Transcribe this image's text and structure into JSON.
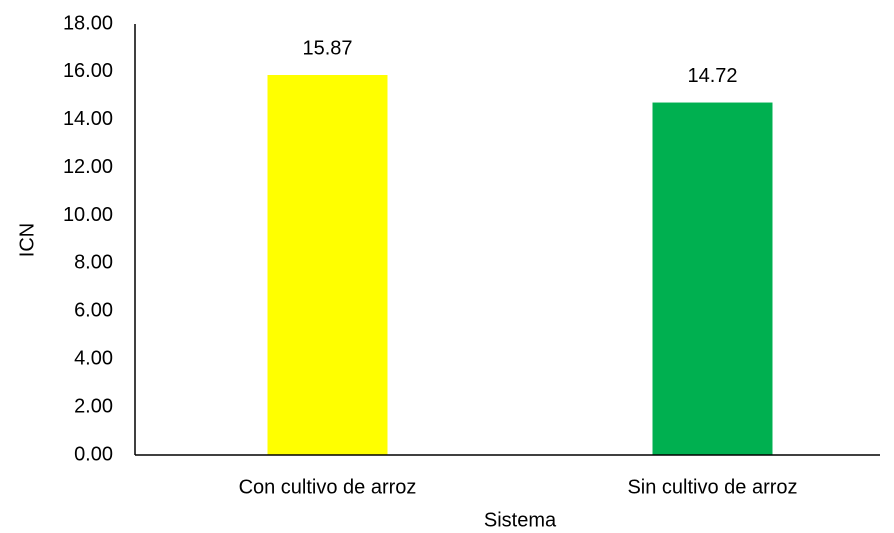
{
  "chart_data": {
    "type": "bar",
    "categories": [
      "Con cultivo de arroz",
      "Sin cultivo de arroz"
    ],
    "values": [
      15.87,
      14.72
    ],
    "colors": [
      "#ffff00",
      "#00b050"
    ],
    "xlabel": "Sistema",
    "ylabel": "ICN",
    "ylim": [
      0,
      18
    ],
    "yticks": [
      {
        "value": 0,
        "label": "0.00"
      },
      {
        "value": 2,
        "label": "2.00"
      },
      {
        "value": 4,
        "label": "4.00"
      },
      {
        "value": 6,
        "label": "6.00"
      },
      {
        "value": 8,
        "label": "8.00"
      },
      {
        "value": 10,
        "label": "10.00"
      },
      {
        "value": 12,
        "label": "12.00"
      },
      {
        "value": 14,
        "label": "14.00"
      },
      {
        "value": 16,
        "label": "16.00"
      },
      {
        "value": 18,
        "label": "18.00"
      }
    ],
    "grid": false
  }
}
